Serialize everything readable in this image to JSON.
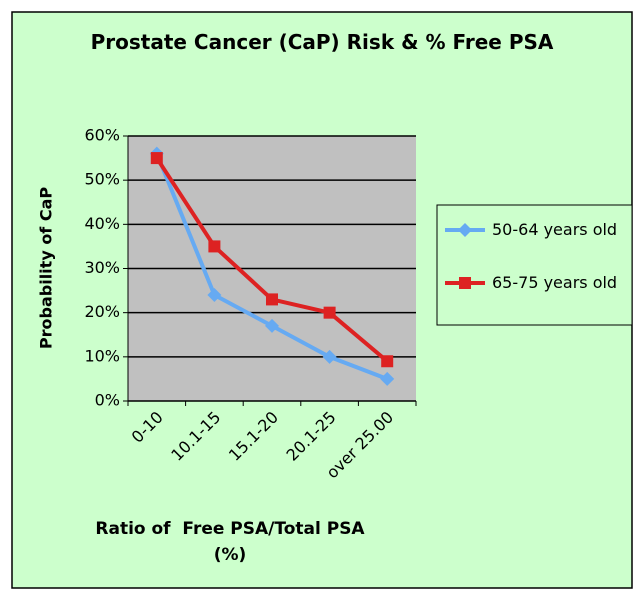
{
  "chart_data": {
    "type": "line",
    "title": "Prostate Cancer (CaP) Risk & % Free PSA",
    "x_label": "Ratio of  Free PSA/Total PSA (%)",
    "y_label": "Probability of CaP",
    "categories": [
      "0-10",
      "10.1-15",
      "15.1-20",
      "20.1-25",
      "over 25.00"
    ],
    "series": [
      {
        "name": "50-64 years old",
        "color": "#66aaf2",
        "marker": "diamond",
        "values": [
          56,
          24,
          17,
          10,
          5
        ]
      },
      {
        "name": "65-75 years old",
        "color": "#dd2222",
        "marker": "square",
        "values": [
          55,
          35,
          23,
          20,
          9
        ]
      }
    ],
    "ylim": [
      0,
      60
    ],
    "yticks": [
      {
        "value": 0,
        "label": "0%"
      },
      {
        "value": 10,
        "label": "10%"
      },
      {
        "value": 20,
        "label": "20%"
      },
      {
        "value": 30,
        "label": "30%"
      },
      {
        "value": 40,
        "label": "40%"
      },
      {
        "value": 50,
        "label": "50%"
      },
      {
        "value": 60,
        "label": "60%"
      }
    ],
    "grid": true,
    "legend": "right"
  }
}
